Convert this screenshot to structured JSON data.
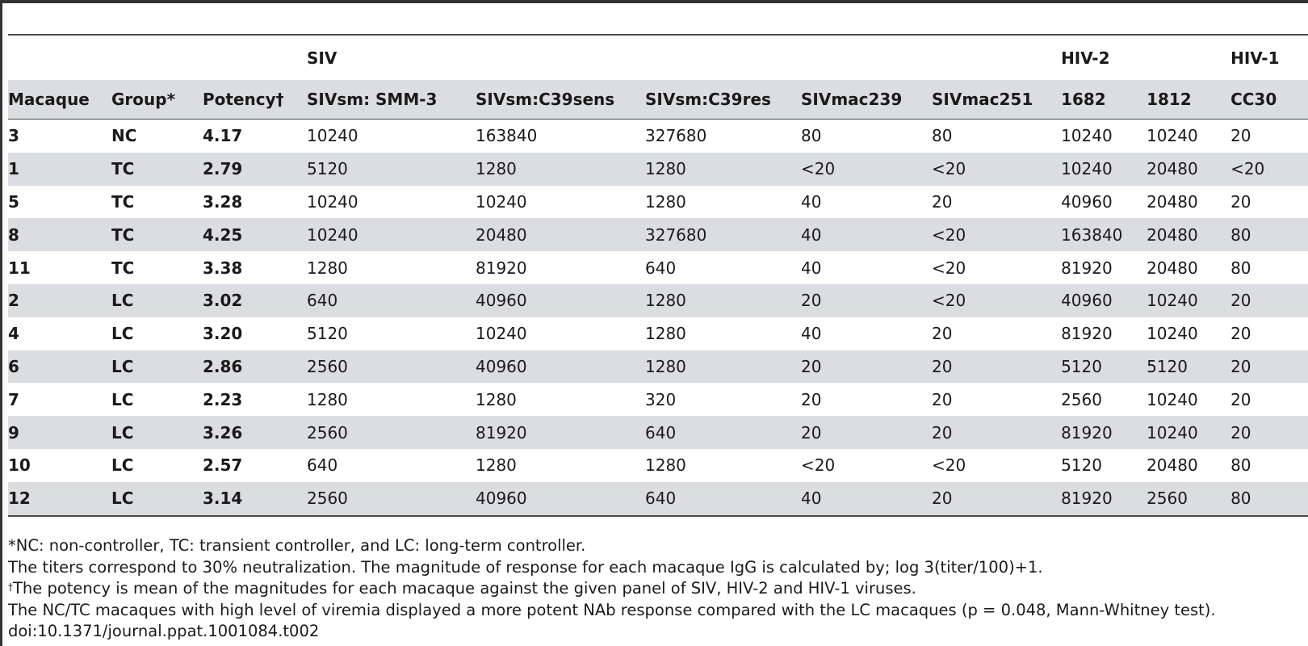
{
  "table": {
    "group_headers": {
      "siv": "SIV",
      "hiv2": "HIV-2",
      "hiv1": "HIV-1"
    },
    "columns": [
      "Macaque",
      "Group*",
      "Potency†",
      "SIVsm: SMM-3",
      "SIVsm:C39sens",
      "SIVsm:C39res",
      "SIVmac239",
      "SIVmac251",
      "1682",
      "1812",
      "CC30"
    ],
    "rows": [
      [
        "3",
        "NC",
        "4.17",
        "10240",
        "163840",
        "327680",
        "80",
        "80",
        "10240",
        "10240",
        "20"
      ],
      [
        "1",
        "TC",
        "2.79",
        "5120",
        "1280",
        "1280",
        "<20",
        "<20",
        "10240",
        "20480",
        "<20"
      ],
      [
        "5",
        "TC",
        "3.28",
        "10240",
        "10240",
        "1280",
        "40",
        "20",
        "40960",
        "20480",
        "20"
      ],
      [
        "8",
        "TC",
        "4.25",
        "10240",
        "20480",
        "327680",
        "40",
        "<20",
        "163840",
        "20480",
        "80"
      ],
      [
        "11",
        "TC",
        "3.38",
        "1280",
        "81920",
        "640",
        "40",
        "<20",
        "81920",
        "20480",
        "80"
      ],
      [
        "2",
        "LC",
        "3.02",
        "640",
        "40960",
        "1280",
        "20",
        "<20",
        "40960",
        "10240",
        "20"
      ],
      [
        "4",
        "LC",
        "3.20",
        "5120",
        "10240",
        "1280",
        "40",
        "20",
        "81920",
        "10240",
        "20"
      ],
      [
        "6",
        "LC",
        "2.86",
        "2560",
        "40960",
        "1280",
        "20",
        "20",
        "5120",
        "5120",
        "20"
      ],
      [
        "7",
        "LC",
        "2.23",
        "1280",
        "1280",
        "320",
        "20",
        "20",
        "2560",
        "10240",
        "20"
      ],
      [
        "9",
        "LC",
        "3.26",
        "2560",
        "81920",
        "640",
        "20",
        "20",
        "81920",
        "10240",
        "20"
      ],
      [
        "10",
        "LC",
        "2.57",
        "640",
        "1280",
        "1280",
        "<20",
        "<20",
        "5120",
        "20480",
        "80"
      ],
      [
        "12",
        "LC",
        "3.14",
        "2560",
        "40960",
        "640",
        "40",
        "20",
        "81920",
        "2560",
        "80"
      ]
    ]
  },
  "footnotes": {
    "group_note": "*NC: non-controller, TC: transient controller, and LC: long-term controller.",
    "titer_note": "The titers correspond to 30% neutralization. The magnitude of response for each macaque IgG is calculated by; log 3(titer/100)+1.",
    "potency_mark": "†",
    "potency_note": "The potency is mean of the magnitudes for each macaque against the given panel of SIV, HIV-2 and HIV-1 viruses.",
    "viremia_note": "The NC/TC macaques with high level of viremia displayed a more potent NAb response compared with the LC macaques (p = 0.048, Mann-Whitney test).",
    "doi": "doi:10.1371/journal.ppat.1001084.t002"
  }
}
